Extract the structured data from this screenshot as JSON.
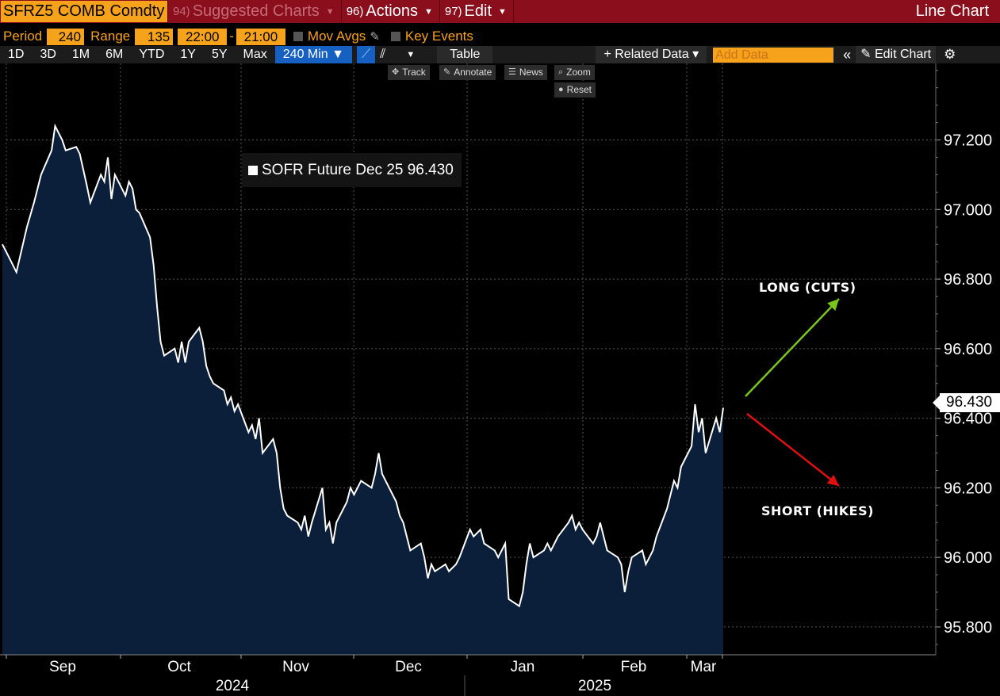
{
  "topbar": {
    "ticker": "SFRZ5 COMB Comdty",
    "menus": [
      {
        "num": "94)",
        "label": "Suggested Charts"
      },
      {
        "num": "96)",
        "label": "Actions"
      },
      {
        "num": "97)",
        "label": "Edit"
      }
    ],
    "chart_type": "Line Chart"
  },
  "settings": {
    "period_label": "Period",
    "period_value": "240",
    "range_label": "Range",
    "range_value": "135",
    "time_from": "22:00",
    "time_sep": "-",
    "time_to": "21:00",
    "mov_avgs": "Mov Avgs",
    "key_events": "Key Events"
  },
  "toolbar": {
    "ranges": [
      "1D",
      "3D",
      "1M",
      "6M",
      "YTD",
      "1Y",
      "5Y",
      "Max"
    ],
    "interval": "240 Min ▼",
    "table": "Table",
    "related": "+ Related Data ▾",
    "add_data_placeholder": "Add Data",
    "collapse": "«",
    "edit_chart": "Edit Chart"
  },
  "tools": {
    "track": "Track",
    "annotate": "Annotate",
    "news": "News",
    "zoom": "Zoom",
    "reset": "Reset"
  },
  "legend": {
    "label": "SOFR Future Dec 25 96.430"
  },
  "last_price": "96.430",
  "annotations": {
    "long": "LONG (CUTS)",
    "short": "SHORT (HIKES)"
  },
  "colors": {
    "accent": "#f7a21b",
    "header": "#8a0e1c",
    "fill": "#0b1e3a",
    "long_arrow": "#7ac51b",
    "short_arrow": "#e01010"
  },
  "chart_data": {
    "type": "area",
    "title": "",
    "series": [
      {
        "name": "SOFR Future Dec 25",
        "points": [
          [
            "2024-08-19",
            96.9
          ],
          [
            "2024-08-21",
            96.86
          ],
          [
            "2024-08-23",
            96.82
          ],
          [
            "2024-08-26",
            96.95
          ],
          [
            "2024-08-28",
            97.02
          ],
          [
            "2024-08-30",
            97.1
          ],
          [
            "2024-09-02",
            97.17
          ],
          [
            "2024-09-03",
            97.24
          ],
          [
            "2024-09-05",
            97.2
          ],
          [
            "2024-09-06",
            97.17
          ],
          [
            "2024-09-09",
            97.18
          ],
          [
            "2024-09-10",
            97.16
          ],
          [
            "2024-09-12",
            97.07
          ],
          [
            "2024-09-13",
            97.02
          ],
          [
            "2024-09-16",
            97.1
          ],
          [
            "2024-09-17",
            97.08
          ],
          [
            "2024-09-18",
            97.15
          ],
          [
            "2024-09-19",
            97.03
          ],
          [
            "2024-09-20",
            97.1
          ],
          [
            "2024-09-23",
            97.04
          ],
          [
            "2024-09-24",
            97.08
          ],
          [
            "2024-09-25",
            97.06
          ],
          [
            "2024-09-26",
            97.0
          ],
          [
            "2024-09-27",
            96.99
          ],
          [
            "2024-09-30",
            96.92
          ],
          [
            "2024-10-01",
            96.84
          ],
          [
            "2024-10-02",
            96.72
          ],
          [
            "2024-10-03",
            96.62
          ],
          [
            "2024-10-04",
            96.58
          ],
          [
            "2024-10-07",
            96.6
          ],
          [
            "2024-10-08",
            96.56
          ],
          [
            "2024-10-09",
            96.62
          ],
          [
            "2024-10-10",
            96.56
          ],
          [
            "2024-10-11",
            96.62
          ],
          [
            "2024-10-14",
            96.66
          ],
          [
            "2024-10-15",
            96.62
          ],
          [
            "2024-10-16",
            96.55
          ],
          [
            "2024-10-17",
            96.52
          ],
          [
            "2024-10-18",
            96.5
          ],
          [
            "2024-10-21",
            96.48
          ],
          [
            "2024-10-22",
            96.44
          ],
          [
            "2024-10-23",
            96.46
          ],
          [
            "2024-10-24",
            96.42
          ],
          [
            "2024-10-25",
            96.44
          ],
          [
            "2024-10-28",
            96.36
          ],
          [
            "2024-10-29",
            96.38
          ],
          [
            "2024-10-30",
            96.34
          ],
          [
            "2024-10-31",
            96.4
          ],
          [
            "2024-11-01",
            96.3
          ],
          [
            "2024-11-04",
            96.34
          ],
          [
            "2024-11-05",
            96.3
          ],
          [
            "2024-11-06",
            96.2
          ],
          [
            "2024-11-07",
            96.14
          ],
          [
            "2024-11-08",
            96.12
          ],
          [
            "2024-11-11",
            96.1
          ],
          [
            "2024-11-12",
            96.08
          ],
          [
            "2024-11-13",
            96.12
          ],
          [
            "2024-11-14",
            96.06
          ],
          [
            "2024-11-15",
            96.1
          ],
          [
            "2024-11-18",
            96.2
          ],
          [
            "2024-11-19",
            96.08
          ],
          [
            "2024-11-20",
            96.1
          ],
          [
            "2024-11-21",
            96.04
          ],
          [
            "2024-11-22",
            96.1
          ],
          [
            "2024-11-25",
            96.16
          ],
          [
            "2024-11-26",
            96.2
          ],
          [
            "2024-11-27",
            96.18
          ],
          [
            "2024-11-29",
            96.22
          ],
          [
            "2024-12-02",
            96.2
          ],
          [
            "2024-12-03",
            96.24
          ],
          [
            "2024-12-04",
            96.3
          ],
          [
            "2024-12-05",
            96.24
          ],
          [
            "2024-12-06",
            96.22
          ],
          [
            "2024-12-09",
            96.16
          ],
          [
            "2024-12-10",
            96.12
          ],
          [
            "2024-12-11",
            96.1
          ],
          [
            "2024-12-12",
            96.06
          ],
          [
            "2024-12-13",
            96.02
          ],
          [
            "2024-12-16",
            96.04
          ],
          [
            "2024-12-17",
            96.0
          ],
          [
            "2024-12-18",
            95.94
          ],
          [
            "2024-12-19",
            95.98
          ],
          [
            "2024-12-20",
            95.96
          ],
          [
            "2024-12-23",
            95.98
          ],
          [
            "2024-12-24",
            95.96
          ],
          [
            "2024-12-26",
            95.98
          ],
          [
            "2024-12-27",
            96.0
          ],
          [
            "2024-12-30",
            96.08
          ],
          [
            "2024-12-31",
            96.06
          ],
          [
            "2025-01-02",
            96.08
          ],
          [
            "2025-01-03",
            96.04
          ],
          [
            "2025-01-06",
            96.02
          ],
          [
            "2025-01-07",
            96.0
          ],
          [
            "2025-01-08",
            96.02
          ],
          [
            "2025-01-09",
            96.04
          ],
          [
            "2025-01-10",
            95.88
          ],
          [
            "2025-01-13",
            95.86
          ],
          [
            "2025-01-14",
            95.9
          ],
          [
            "2025-01-15",
            95.98
          ],
          [
            "2025-01-16",
            96.04
          ],
          [
            "2025-01-17",
            96.0
          ],
          [
            "2025-01-20",
            96.02
          ],
          [
            "2025-01-21",
            96.04
          ],
          [
            "2025-01-22",
            96.02
          ],
          [
            "2025-01-23",
            96.04
          ],
          [
            "2025-01-24",
            96.06
          ],
          [
            "2025-01-27",
            96.1
          ],
          [
            "2025-01-28",
            96.12
          ],
          [
            "2025-01-29",
            96.08
          ],
          [
            "2025-01-30",
            96.1
          ],
          [
            "2025-01-31",
            96.08
          ],
          [
            "2025-02-03",
            96.04
          ],
          [
            "2025-02-04",
            96.06
          ],
          [
            "2025-02-05",
            96.1
          ],
          [
            "2025-02-06",
            96.06
          ],
          [
            "2025-02-07",
            96.02
          ],
          [
            "2025-02-10",
            96.0
          ],
          [
            "2025-02-11",
            95.98
          ],
          [
            "2025-02-12",
            95.9
          ],
          [
            "2025-02-13",
            95.96
          ],
          [
            "2025-02-14",
            96.0
          ],
          [
            "2025-02-17",
            96.02
          ],
          [
            "2025-02-18",
            95.98
          ],
          [
            "2025-02-19",
            96.0
          ],
          [
            "2025-02-20",
            96.02
          ],
          [
            "2025-02-21",
            96.06
          ],
          [
            "2025-02-24",
            96.14
          ],
          [
            "2025-02-25",
            96.18
          ],
          [
            "2025-02-26",
            96.22
          ],
          [
            "2025-02-27",
            96.2
          ],
          [
            "2025-02-28",
            96.26
          ],
          [
            "2025-03-03",
            96.32
          ],
          [
            "2025-03-04",
            96.44
          ],
          [
            "2025-03-05",
            96.36
          ],
          [
            "2025-03-06",
            96.4
          ],
          [
            "2025-03-07",
            96.3
          ],
          [
            "2025-03-10",
            96.4
          ],
          [
            "2025-03-11",
            96.36
          ],
          [
            "2025-03-12",
            96.43
          ]
        ]
      }
    ],
    "ylim": [
      95.72,
      97.42
    ],
    "yticks": [
      "95.800",
      "96.000",
      "96.200",
      "96.400",
      "96.600",
      "96.800",
      "97.000",
      "97.200"
    ],
    "month_labels": [
      {
        "date": "2024-09-01",
        "label": "Sep"
      },
      {
        "date": "2024-10-01",
        "label": "Oct"
      },
      {
        "date": "2024-11-01",
        "label": "Nov"
      },
      {
        "date": "2024-12-01",
        "label": "Dec"
      },
      {
        "date": "2025-01-01",
        "label": "Jan"
      },
      {
        "date": "2025-02-01",
        "label": "Feb"
      },
      {
        "date": "2025-03-01",
        "label": "Mar"
      }
    ],
    "year_labels": [
      "2024",
      "2025"
    ],
    "grid": true
  }
}
